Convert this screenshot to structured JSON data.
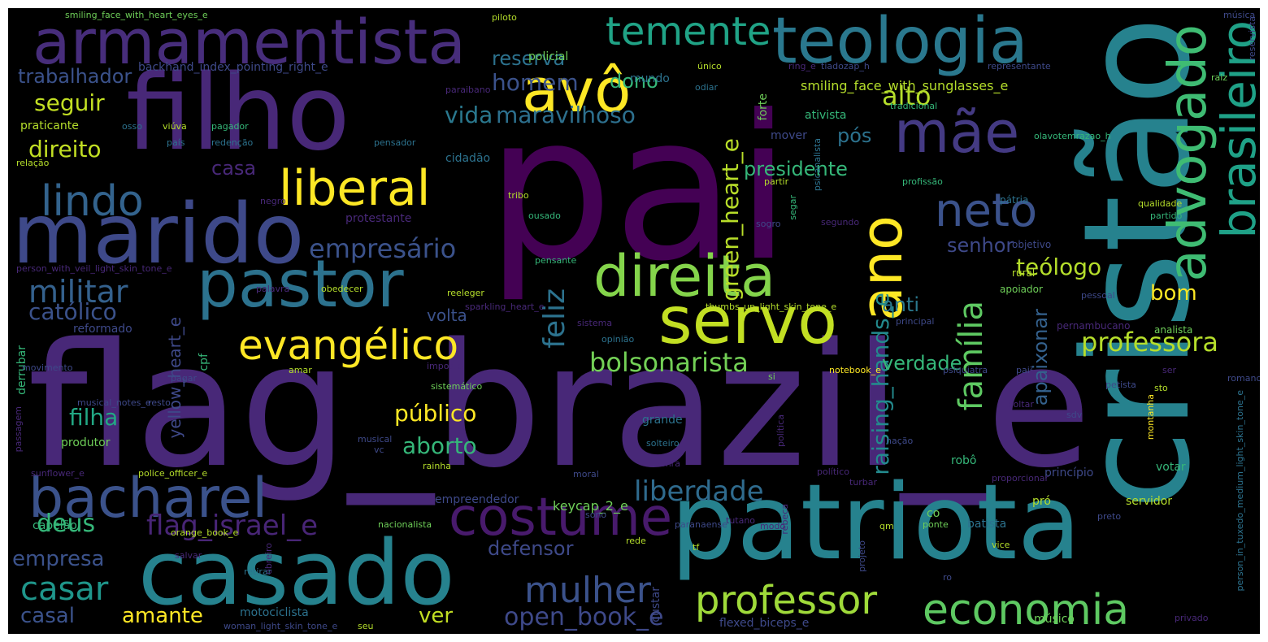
{
  "colors": {
    "background": "#000000",
    "palette": [
      "#440154",
      "#482878",
      "#3e4989",
      "#31688e",
      "#26828e",
      "#1f9e89",
      "#35b779",
      "#6ece58",
      "#b5de2b",
      "#fde725"
    ]
  },
  "words": [
    {
      "text": "pai",
      "color": "#440154"
    },
    {
      "text": "flag_brazil_e",
      "color": "#482878"
    },
    {
      "text": "cristão",
      "color": "#26828e"
    },
    {
      "text": "patriota",
      "color": "#26828e"
    },
    {
      "text": "filho",
      "color": "#482878"
    },
    {
      "text": "casado",
      "color": "#26828e"
    },
    {
      "text": "marido",
      "color": "#3e4989"
    },
    {
      "text": "armamentista",
      "color": "#472d7b"
    },
    {
      "text": "teologia",
      "color": "#2a788e"
    },
    {
      "text": "pastor",
      "color": "#2c728e"
    },
    {
      "text": "servo",
      "color": "#c2df23"
    },
    {
      "text": "avô",
      "color": "#fde725"
    },
    {
      "text": "direita",
      "color": "#84d44b"
    },
    {
      "text": "mãe",
      "color": "#443a83"
    },
    {
      "text": "bacharel",
      "color": "#3b528b"
    },
    {
      "text": "costume",
      "color": "#481a6c"
    },
    {
      "text": "economia",
      "color": "#5ec962"
    },
    {
      "text": "liberal",
      "color": "#fde725"
    },
    {
      "text": "ano",
      "color": "#fde725"
    },
    {
      "text": "advogado",
      "color": "#3fbc73"
    },
    {
      "text": "brasileiro",
      "color": "#1fa187"
    },
    {
      "text": "professor",
      "color": "#9fda3a"
    },
    {
      "text": "lindo",
      "color": "#33638d"
    },
    {
      "text": "neto",
      "color": "#3b528b"
    },
    {
      "text": "evangélico",
      "color": "#fde725"
    },
    {
      "text": "temente",
      "color": "#20a386"
    },
    {
      "text": "mulher",
      "color": "#3b528b"
    },
    {
      "text": "casar",
      "color": "#1f968b"
    },
    {
      "text": "família",
      "color": "#5ec962"
    },
    {
      "text": "militar",
      "color": "#34618d"
    },
    {
      "text": "liberdade",
      "color": "#2f6b8e"
    },
    {
      "text": "empresário",
      "color": "#3b528b"
    },
    {
      "text": "bolsonarista",
      "color": "#73d056"
    },
    {
      "text": "professora",
      "color": "#b5de2b"
    },
    {
      "text": "alto",
      "color": "#b5de2b"
    },
    {
      "text": "feliz",
      "color": "#2c728e"
    },
    {
      "text": "green_heart_e",
      "color": "#b8de29"
    },
    {
      "text": "raising_hands_e",
      "color": "#238a8d"
    },
    {
      "text": "open_book_e",
      "color": "#3e4989"
    },
    {
      "text": "flag_israel_e",
      "color": "#482576"
    },
    {
      "text": "deus",
      "color": "#35b779"
    },
    {
      "text": "homem",
      "color": "#3b528b"
    },
    {
      "text": "vida",
      "color": "#2a788e"
    },
    {
      "text": "maravilhoso",
      "color": "#2d708e"
    },
    {
      "text": "católico",
      "color": "#3b528b"
    },
    {
      "text": "direito",
      "color": "#c2df23"
    },
    {
      "text": "seguir",
      "color": "#c2df23"
    },
    {
      "text": "casa",
      "color": "#482878"
    },
    {
      "text": "reserva",
      "color": "#2c728e"
    },
    {
      "text": "dono",
      "color": "#35b779"
    },
    {
      "text": "presidente",
      "color": "#35b779"
    },
    {
      "text": "senhor",
      "color": "#3e4989"
    },
    {
      "text": "teólogo",
      "color": "#b5de2b"
    },
    {
      "text": "pós",
      "color": "#2c728e"
    },
    {
      "text": "trabalhador",
      "color": "#3b528b"
    },
    {
      "text": "bom",
      "color": "#fde725"
    },
    {
      "text": "anti",
      "color": "#2a788e"
    },
    {
      "text": "apaixonar",
      "color": "#34618d"
    },
    {
      "text": "verdade",
      "color": "#35b779"
    },
    {
      "text": "público",
      "color": "#fde725"
    },
    {
      "text": "aborto",
      "color": "#35b779"
    },
    {
      "text": "filha",
      "color": "#22a884"
    },
    {
      "text": "empresa",
      "color": "#3b528b"
    },
    {
      "text": "amante",
      "color": "#fde725"
    },
    {
      "text": "casal",
      "color": "#3b528b"
    },
    {
      "text": "defensor",
      "color": "#3e4989"
    },
    {
      "text": "ver",
      "color": "#c2df23"
    },
    {
      "text": "volta",
      "color": "#3b528b"
    },
    {
      "text": "yellow_heart_e",
      "color": "#3e4989"
    },
    {
      "text": "smiling_face_with_sunglasses_e",
      "color": "#b5de2b"
    },
    {
      "text": "backhand_index_pointing_right_e",
      "color": "#3e4989"
    },
    {
      "text": "praticante",
      "color": "#b5de2b"
    },
    {
      "text": "mundo",
      "color": "#2c728e"
    },
    {
      "text": "policial",
      "color": "#6ece58"
    },
    {
      "text": "cidadão",
      "color": "#2c728e"
    },
    {
      "text": "forte",
      "color": "#6ece58"
    },
    {
      "text": "mover",
      "color": "#3e4989"
    },
    {
      "text": "ativista",
      "color": "#35b779"
    },
    {
      "text": "cpf",
      "color": "#35b779"
    },
    {
      "text": "keycap_2_e",
      "color": "#6ece58"
    },
    {
      "text": "flexed_biceps_e",
      "color": "#3e4989"
    },
    {
      "text": "músico",
      "color": "#6ece58"
    },
    {
      "text": "custar",
      "color": "#3e4989"
    },
    {
      "text": "motociclista",
      "color": "#2c728e"
    },
    {
      "text": "capelão",
      "color": "#35b779"
    },
    {
      "text": "produtor",
      "color": "#6ece58"
    },
    {
      "text": "reformado",
      "color": "#3e4989"
    },
    {
      "text": "derrubar",
      "color": "#35b779"
    },
    {
      "text": "protestante",
      "color": "#482878"
    },
    {
      "text": "empreendedor",
      "color": "#3e4989"
    },
    {
      "text": "grande",
      "color": "#2c728e"
    },
    {
      "text": "batista",
      "color": "#2c728e"
    },
    {
      "text": "servidor",
      "color": "#b5de2b"
    },
    {
      "text": "robô",
      "color": "#35b779"
    },
    {
      "text": "pró",
      "color": "#b5de2b"
    },
    {
      "text": "co",
      "color": "#6ece58"
    },
    {
      "text": "princípio",
      "color": "#3e4989"
    },
    {
      "text": "votar",
      "color": "#35b779"
    },
    {
      "text": "analista",
      "color": "#6ece58"
    },
    {
      "text": "pernambucano",
      "color": "#482878"
    },
    {
      "text": "apoiador",
      "color": "#6ece58"
    },
    {
      "text": "pátria",
      "color": "#2c728e"
    },
    {
      "text": "objetivo",
      "color": "#3e4989"
    },
    {
      "text": "rural",
      "color": "#b5de2b"
    },
    {
      "text": "piloto",
      "color": "#b5de2b"
    },
    {
      "text": "smiling_face_with_heart_eyes_e",
      "color": "#6ece58"
    },
    {
      "text": "música",
      "color": "#3e4989"
    },
    {
      "text": "reservista",
      "color": "#3e4989"
    },
    {
      "text": "representante",
      "color": "#3e4989"
    },
    {
      "text": "raiz",
      "color": "#6ece58"
    },
    {
      "text": "único",
      "color": "#b5de2b"
    },
    {
      "text": "ring_e",
      "color": "#482878"
    },
    {
      "text": "tiadozap_h",
      "color": "#3e4989"
    },
    {
      "text": "tradicional",
      "color": "#35b779"
    },
    {
      "text": "olavotemrazao_h",
      "color": "#35b779"
    },
    {
      "text": "paraibano",
      "color": "#482878"
    },
    {
      "text": "odiar",
      "color": "#2c728e"
    },
    {
      "text": "pagador",
      "color": "#35b779"
    },
    {
      "text": "viúva",
      "color": "#b5de2b"
    },
    {
      "text": "osso",
      "color": "#2c728e"
    },
    {
      "text": "país",
      "color": "#2c728e"
    },
    {
      "text": "redenção",
      "color": "#2c728e"
    },
    {
      "text": "pensador",
      "color": "#2c728e"
    },
    {
      "text": "relação",
      "color": "#b5de2b"
    },
    {
      "text": "negro",
      "color": "#482878"
    },
    {
      "text": "tribo",
      "color": "#b5de2b"
    },
    {
      "text": "ousado",
      "color": "#35b779"
    },
    {
      "text": "partir",
      "color": "#b5de2b"
    },
    {
      "text": "sogro",
      "color": "#3e4989"
    },
    {
      "text": "segar",
      "color": "#35b779"
    },
    {
      "text": "psicanalista",
      "color": "#2c728e"
    },
    {
      "text": "segundo",
      "color": "#482878"
    },
    {
      "text": "profissão",
      "color": "#35b779"
    },
    {
      "text": "qualidade",
      "color": "#b5de2b"
    },
    {
      "text": "partido",
      "color": "#35b779"
    },
    {
      "text": "pensante",
      "color": "#35b779"
    },
    {
      "text": "person_with_veil_light_skin_tone_e",
      "color": "#482878"
    },
    {
      "text": "palavra",
      "color": "#482878"
    },
    {
      "text": "obedecer",
      "color": "#b5de2b"
    },
    {
      "text": "reeleger",
      "color": "#b5de2b"
    },
    {
      "text": "sparkling_heart_e",
      "color": "#482878"
    },
    {
      "text": "thumbs_up_light_skin_tone_e",
      "color": "#b5de2b"
    },
    {
      "text": "pessoal",
      "color": "#3e4989"
    },
    {
      "text": "sistema",
      "color": "#482878"
    },
    {
      "text": "principal",
      "color": "#3e4989"
    },
    {
      "text": "opinião",
      "color": "#2c728e"
    },
    {
      "text": "movimento",
      "color": "#3e4989"
    },
    {
      "text": "amar",
      "color": "#b5de2b"
    },
    {
      "text": "imposto",
      "color": "#482878"
    },
    {
      "text": "pagar",
      "color": "#3e4989"
    },
    {
      "text": "sistemático",
      "color": "#6ece58"
    },
    {
      "text": "notebook_e",
      "color": "#fde725"
    },
    {
      "text": "psiquiatra",
      "color": "#3e4989"
    },
    {
      "text": "si",
      "color": "#6ece58"
    },
    {
      "text": "pai²",
      "color": "#3e4989"
    },
    {
      "text": "ser",
      "color": "#482878"
    },
    {
      "text": "petista",
      "color": "#3e4989"
    },
    {
      "text": "romano",
      "color": "#3e4989"
    },
    {
      "text": "sto",
      "color": "#b5de2b"
    },
    {
      "text": "sdv",
      "color": "#3e4989"
    },
    {
      "text": "voltar",
      "color": "#482878"
    },
    {
      "text": "montanha",
      "color": "#fde725"
    },
    {
      "text": "person_in_tuxedo_medium_light_skin_tone_e",
      "color": "#2c728e"
    },
    {
      "text": "musical_notes_e",
      "color": "#3e4989"
    },
    {
      "text": "resto",
      "color": "#3e4989"
    },
    {
      "text": "passagem",
      "color": "#482878"
    },
    {
      "text": "musical",
      "color": "#3e4989"
    },
    {
      "text": "vc",
      "color": "#3e4989"
    },
    {
      "text": "solteiro",
      "color": "#2c728e"
    },
    {
      "text": "nação",
      "color": "#3e4989"
    },
    {
      "text": "política",
      "color": "#482878"
    },
    {
      "text": "sunflower_e",
      "color": "#482878"
    },
    {
      "text": "police_officer_e",
      "color": "#b5de2b"
    },
    {
      "text": "rainha",
      "color": "#b5de2b"
    },
    {
      "text": "moral",
      "color": "#3e4989"
    },
    {
      "text": "honra",
      "color": "#482878"
    },
    {
      "text": "político",
      "color": "#482878"
    },
    {
      "text": "turbar",
      "color": "#482878"
    },
    {
      "text": "proporcionar",
      "color": "#482878"
    },
    {
      "text": "sono",
      "color": "#3e4989"
    },
    {
      "text": "preto",
      "color": "#3e4989"
    },
    {
      "text": "nacionalista",
      "color": "#6ece58"
    },
    {
      "text": "paranaense",
      "color": "#3e4989"
    },
    {
      "text": "tutano",
      "color": "#482878"
    },
    {
      "text": "modo",
      "color": "#482878"
    },
    {
      "text": "rebeca",
      "color": "#482878"
    },
    {
      "text": "orange_book_e",
      "color": "#b5de2b"
    },
    {
      "text": "salvar",
      "color": "#482878"
    },
    {
      "text": "retirar",
      "color": "#2c728e"
    },
    {
      "text": "obreiro",
      "color": "#482878"
    },
    {
      "text": "rede",
      "color": "#b5de2b"
    },
    {
      "text": "tf",
      "color": "#b5de2b"
    },
    {
      "text": "projeto",
      "color": "#3e4989"
    },
    {
      "text": "qm",
      "color": "#b5de2b"
    },
    {
      "text": "ponte",
      "color": "#6ece58"
    },
    {
      "text": "vice",
      "color": "#b5de2b"
    },
    {
      "text": "ro",
      "color": "#3e4989"
    },
    {
      "text": "privado",
      "color": "#482878"
    },
    {
      "text": "woman_light_skin_tone_e",
      "color": "#3e4989"
    },
    {
      "text": "seu",
      "color": "#b5de2b"
    }
  ]
}
